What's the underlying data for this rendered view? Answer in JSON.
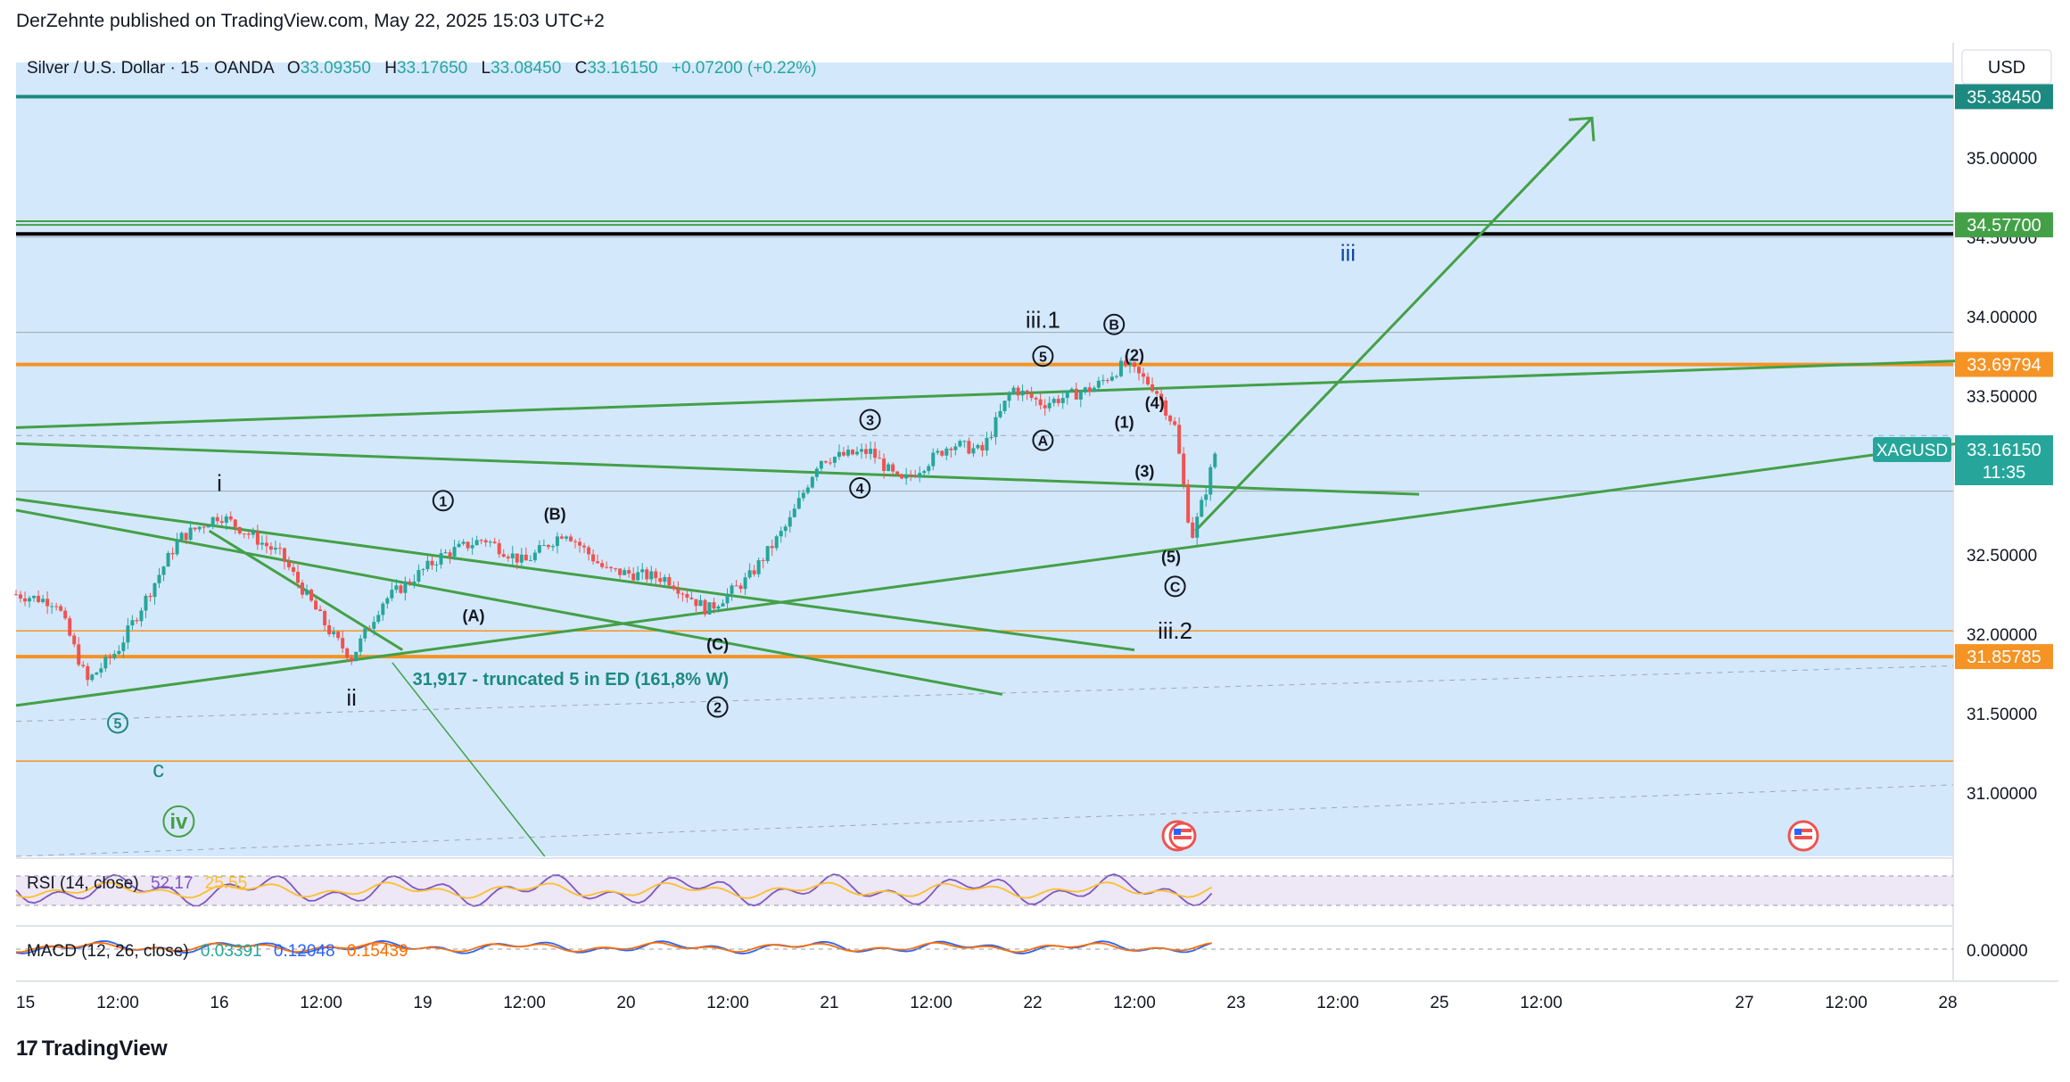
{
  "header": {
    "published": "DerZehnte published on TradingView.com, May 22, 2025 15:03 UTC+2"
  },
  "legend": {
    "symbol": "Silver / U.S. Dollar · 15 · OANDA",
    "o_label": "O",
    "o": "33.09350",
    "h_label": "H",
    "h": "33.17650",
    "l_label": "L",
    "l": "33.08450",
    "c_label": "C",
    "c": "33.16150",
    "change": "+0.07200 (+0.22%)"
  },
  "currency": "USD",
  "colors": {
    "background_zone": "#d4e8fb",
    "green": "#43a047",
    "orange": "#f59324",
    "teal": "#26a69a",
    "dark_teal": "#1c8a80",
    "black": "#000000",
    "rsi": "#7e57c2",
    "rsi_ma": "#fbc02d",
    "macd": "#2962ff",
    "signal": "#ff6d00",
    "up": "#26a69a",
    "down": "#ef5350"
  },
  "price_labels": [
    {
      "value": "35.38450",
      "color": "#1c8a80"
    },
    {
      "value": "34.57700",
      "color": "#43a047"
    },
    {
      "value": "33.69794",
      "color": "#f59324"
    },
    {
      "value": "31.85785",
      "color": "#f59324"
    }
  ],
  "last_price": {
    "symbol": "XAGUSD",
    "value": "33.16150",
    "countdown": "11:35",
    "color": "#26a69a"
  },
  "chart_data": {
    "type": "candlestick",
    "title": "Silver / U.S. Dollar · 15 · OANDA",
    "y_ticks": [
      "35.00000",
      "34.50000",
      "34.00000",
      "33.50000",
      "32.50000",
      "32.00000",
      "31.50000",
      "31.00000"
    ],
    "y_tick_values": [
      35.0,
      34.5,
      34.0,
      33.5,
      32.5,
      32.0,
      31.5,
      31.0
    ],
    "ylim": [
      30.6,
      35.6
    ],
    "x_ticks": [
      "15",
      "12:00",
      "16",
      "12:00",
      "19",
      "12:00",
      "20",
      "12:00",
      "21",
      "12:00",
      "22",
      "12:00",
      "23",
      "12:00",
      "25",
      "12:00",
      "27",
      "12:00",
      "28"
    ],
    "x_tick_slots": [
      0,
      0.5,
      1,
      1.5,
      2,
      2.5,
      3,
      3.5,
      4,
      4.5,
      5,
      5.5,
      6,
      6.5,
      7,
      7.5,
      8.5,
      9,
      9.5
    ],
    "price_path": [
      [
        0.0,
        32.25
      ],
      [
        0.2,
        32.2
      ],
      [
        0.35,
        31.7
      ],
      [
        0.5,
        31.9
      ],
      [
        0.8,
        32.6
      ],
      [
        1.0,
        32.75
      ],
      [
        1.3,
        32.5
      ],
      [
        1.55,
        32.0
      ],
      [
        1.65,
        31.85
      ],
      [
        1.8,
        32.2
      ],
      [
        2.1,
        32.5
      ],
      [
        2.3,
        32.6
      ],
      [
        2.5,
        32.45
      ],
      [
        2.7,
        32.65
      ],
      [
        2.9,
        32.4
      ],
      [
        3.2,
        32.35
      ],
      [
        3.4,
        32.15
      ],
      [
        3.6,
        32.35
      ],
      [
        3.8,
        32.7
      ],
      [
        3.95,
        33.1
      ],
      [
        4.2,
        33.15
      ],
      [
        4.35,
        32.95
      ],
      [
        4.6,
        33.2
      ],
      [
        4.75,
        33.15
      ],
      [
        4.9,
        33.55
      ],
      [
        5.05,
        33.45
      ],
      [
        5.3,
        33.55
      ],
      [
        5.45,
        33.7
      ],
      [
        5.6,
        33.55
      ],
      [
        5.7,
        33.3
      ],
      [
        5.78,
        32.6
      ],
      [
        5.85,
        32.9
      ],
      [
        5.9,
        33.16
      ]
    ],
    "levels": [
      {
        "value": 35.3845,
        "color": "#1c8a80",
        "style": "solid-thick"
      },
      {
        "value": 34.577,
        "color": "#43a047",
        "style": "solid"
      },
      {
        "value": 34.52,
        "color": "#000000",
        "style": "solid-thick"
      },
      {
        "value": 33.69794,
        "color": "#f59324",
        "style": "solid-thick"
      },
      {
        "value": 31.85785,
        "color": "#f59324",
        "style": "solid-thick"
      },
      {
        "value": 32.02,
        "color": "#f59324",
        "style": "thin"
      },
      {
        "value": 31.2,
        "color": "#f59324",
        "style": "thin"
      }
    ],
    "wave_labels": [
      {
        "text": "i",
        "slot": 1.0,
        "y": 32.9
      },
      {
        "text": "ii",
        "slot": 1.65,
        "y": 31.55
      },
      {
        "text": "iii.1",
        "slot": 5.05,
        "y": 33.93
      },
      {
        "text": "iii.2",
        "slot": 5.7,
        "y": 31.97
      },
      {
        "text": "iii",
        "slot": 6.55,
        "y": 34.35
      },
      {
        "text": "(A)",
        "slot": 2.25,
        "y": 32.08
      },
      {
        "text": "(B)",
        "slot": 2.65,
        "y": 32.72
      },
      {
        "text": "(C)",
        "slot": 3.45,
        "y": 31.9
      },
      {
        "text": "(1)",
        "slot": 5.45,
        "y": 33.3
      },
      {
        "text": "(2)",
        "slot": 5.5,
        "y": 33.72
      },
      {
        "text": "(3)",
        "slot": 5.55,
        "y": 32.99
      },
      {
        "text": "(4)",
        "slot": 5.6,
        "y": 33.42
      },
      {
        "text": "(5)",
        "slot": 5.68,
        "y": 32.45
      },
      {
        "text": "c",
        "slot": 0.7,
        "y": 31.1
      }
    ],
    "circled_labels": [
      {
        "text": "5",
        "slot": 0.5,
        "y": 31.44,
        "color": "#1c8a80"
      },
      {
        "text": "1",
        "slot": 2.1,
        "y": 32.84,
        "color": "#131722"
      },
      {
        "text": "2",
        "slot": 3.45,
        "y": 31.54,
        "color": "#131722"
      },
      {
        "text": "3",
        "slot": 4.2,
        "y": 33.35,
        "color": "#131722"
      },
      {
        "text": "4",
        "slot": 4.15,
        "y": 32.92,
        "color": "#131722"
      },
      {
        "text": "5",
        "slot": 5.05,
        "y": 33.75,
        "color": "#131722"
      },
      {
        "text": "A",
        "slot": 5.05,
        "y": 33.22,
        "color": "#131722"
      },
      {
        "text": "B",
        "slot": 5.4,
        "y": 33.95,
        "color": "#131722"
      },
      {
        "text": "C",
        "slot": 5.7,
        "y": 32.3,
        "color": "#131722"
      },
      {
        "text": "iv",
        "slot": 0.8,
        "y": 30.82,
        "color": "#43a047"
      }
    ],
    "annotation": {
      "text": "31,917 - truncated 5 in ED (161,8% W)",
      "slot": 1.95,
      "y": 31.68,
      "color": "#1c8a80"
    },
    "trendlines": [
      {
        "from": [
          0.0,
          31.55
        ],
        "to": [
          9.55,
          33.2
        ],
        "color": "#43a047"
      },
      {
        "from": [
          0.0,
          33.2
        ],
        "to": [
          6.9,
          32.88
        ],
        "color": "#43a047"
      },
      {
        "from": [
          0.0,
          32.85
        ],
        "to": [
          5.5,
          31.9
        ],
        "color": "#43a047"
      },
      {
        "from": [
          0.0,
          32.78
        ],
        "to": [
          4.85,
          31.62
        ],
        "color": "#43a047"
      },
      {
        "from": [
          0.95,
          32.65
        ],
        "to": [
          1.9,
          31.9
        ],
        "color": "#43a047"
      },
      {
        "from": [
          0.0,
          33.3
        ],
        "to": [
          9.55,
          33.72
        ],
        "color": "#43a047"
      }
    ],
    "arrow": {
      "from": [
        5.8,
        32.65
      ],
      "to": [
        7.75,
        35.25
      ],
      "color": "#43a047"
    }
  },
  "rsi": {
    "label": "RSI (14, close)",
    "value": "52.17",
    "ma": "25.55"
  },
  "macd": {
    "label": "MACD (12, 26, close)",
    "v1": "0.03391",
    "v2": "0.12048",
    "v3": "0.15439",
    "zero": "0.00000"
  },
  "footer": {
    "brand": "TradingView"
  }
}
